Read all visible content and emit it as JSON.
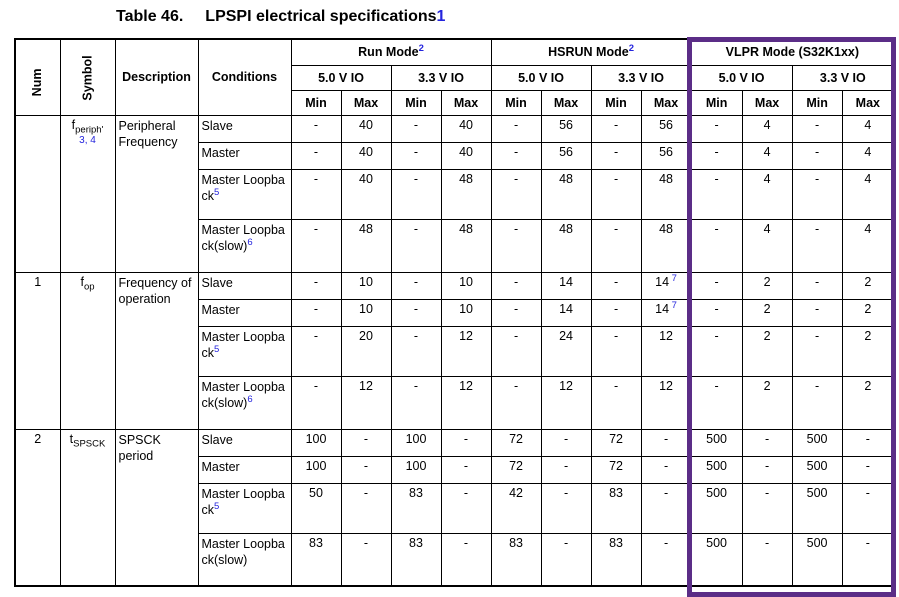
{
  "accent_blue": "#2424dd",
  "highlight_purple": "#5b2d87",
  "title": {
    "label": "Table 46.",
    "text": "LPSPI electrical specifications",
    "footnote": "1"
  },
  "header": {
    "num": "Num",
    "symbol": "Symbol",
    "description": "Description",
    "conditions": "Conditions",
    "groups": [
      {
        "label": "Run Mode",
        "footnote": "2"
      },
      {
        "label": "HSRUN Mode",
        "footnote": "2"
      },
      {
        "label": "VLPR Mode (S32K1xx)",
        "footnote": ""
      }
    ],
    "voltage_50": "5.0 V IO",
    "voltage_33": "3.3 V IO",
    "min": "Min",
    "max": "Max"
  },
  "groups": [
    {
      "num": "",
      "symbol": {
        "base": "f",
        "sub": "periph'",
        "footnote": "3, 4"
      },
      "description": "Peripheral Frequency",
      "rows": [
        {
          "condition": "Slave",
          "footnote": "",
          "values": [
            "-",
            "40",
            "-",
            "40",
            "-",
            "56",
            "-",
            "56",
            "-",
            "4",
            "-",
            "4"
          ]
        },
        {
          "condition": "Master",
          "footnote": "",
          "values": [
            "-",
            "40",
            "-",
            "40",
            "-",
            "56",
            "-",
            "56",
            "-",
            "4",
            "-",
            "4"
          ]
        },
        {
          "condition": "Master Loopback",
          "footnote": "5",
          "values": [
            "-",
            "40",
            "-",
            "48",
            "-",
            "48",
            "-",
            "48",
            "-",
            "4",
            "-",
            "4"
          ]
        },
        {
          "condition": "Master Loopback(slow)",
          "footnote": "6",
          "values": [
            "-",
            "48",
            "-",
            "48",
            "-",
            "48",
            "-",
            "48",
            "-",
            "4",
            "-",
            "4"
          ]
        }
      ]
    },
    {
      "num": "1",
      "symbol": {
        "base": "f",
        "sub": "op",
        "footnote": ""
      },
      "description": "Frequency of operation",
      "rows": [
        {
          "condition": "Slave",
          "footnote": "",
          "values": [
            "-",
            "10",
            "-",
            "10",
            "-",
            "14",
            "-",
            {
              "v": "14",
              "fn": "7"
            },
            "-",
            "2",
            "-",
            "2"
          ]
        },
        {
          "condition": "Master",
          "footnote": "",
          "values": [
            "-",
            "10",
            "-",
            "10",
            "-",
            "14",
            "-",
            {
              "v": "14",
              "fn": "7"
            },
            "-",
            "2",
            "-",
            "2"
          ]
        },
        {
          "condition": "Master Loopback",
          "footnote": "5",
          "values": [
            "-",
            "20",
            "-",
            "12",
            "-",
            "24",
            "-",
            "12",
            "-",
            "2",
            "-",
            "2"
          ]
        },
        {
          "condition": "Master Loopback(slow)",
          "footnote": "6",
          "values": [
            "-",
            "12",
            "-",
            "12",
            "-",
            "12",
            "-",
            "12",
            "-",
            "2",
            "-",
            "2"
          ]
        }
      ]
    },
    {
      "num": "2",
      "symbol": {
        "base": "t",
        "sub": "SPSCK",
        "footnote": ""
      },
      "description": "SPSCK period",
      "rows": [
        {
          "condition": "Slave",
          "footnote": "",
          "values": [
            "100",
            "-",
            "100",
            "-",
            "72",
            "-",
            "72",
            "-",
            "500",
            "-",
            "500",
            "-"
          ]
        },
        {
          "condition": "Master",
          "footnote": "",
          "values": [
            "100",
            "-",
            "100",
            "-",
            "72",
            "-",
            "72",
            "-",
            "500",
            "-",
            "500",
            "-"
          ]
        },
        {
          "condition": "Master Loopback",
          "footnote": "5",
          "values": [
            "50",
            "-",
            "83",
            "-",
            "42",
            "-",
            "83",
            "-",
            "500",
            "-",
            "500",
            "-"
          ]
        },
        {
          "condition": "Master Loopback(slow)",
          "footnote": "",
          "values": [
            "83",
            "-",
            "83",
            "-",
            "83",
            "-",
            "83",
            "-",
            "500",
            "-",
            "500",
            "-"
          ]
        }
      ]
    }
  ]
}
